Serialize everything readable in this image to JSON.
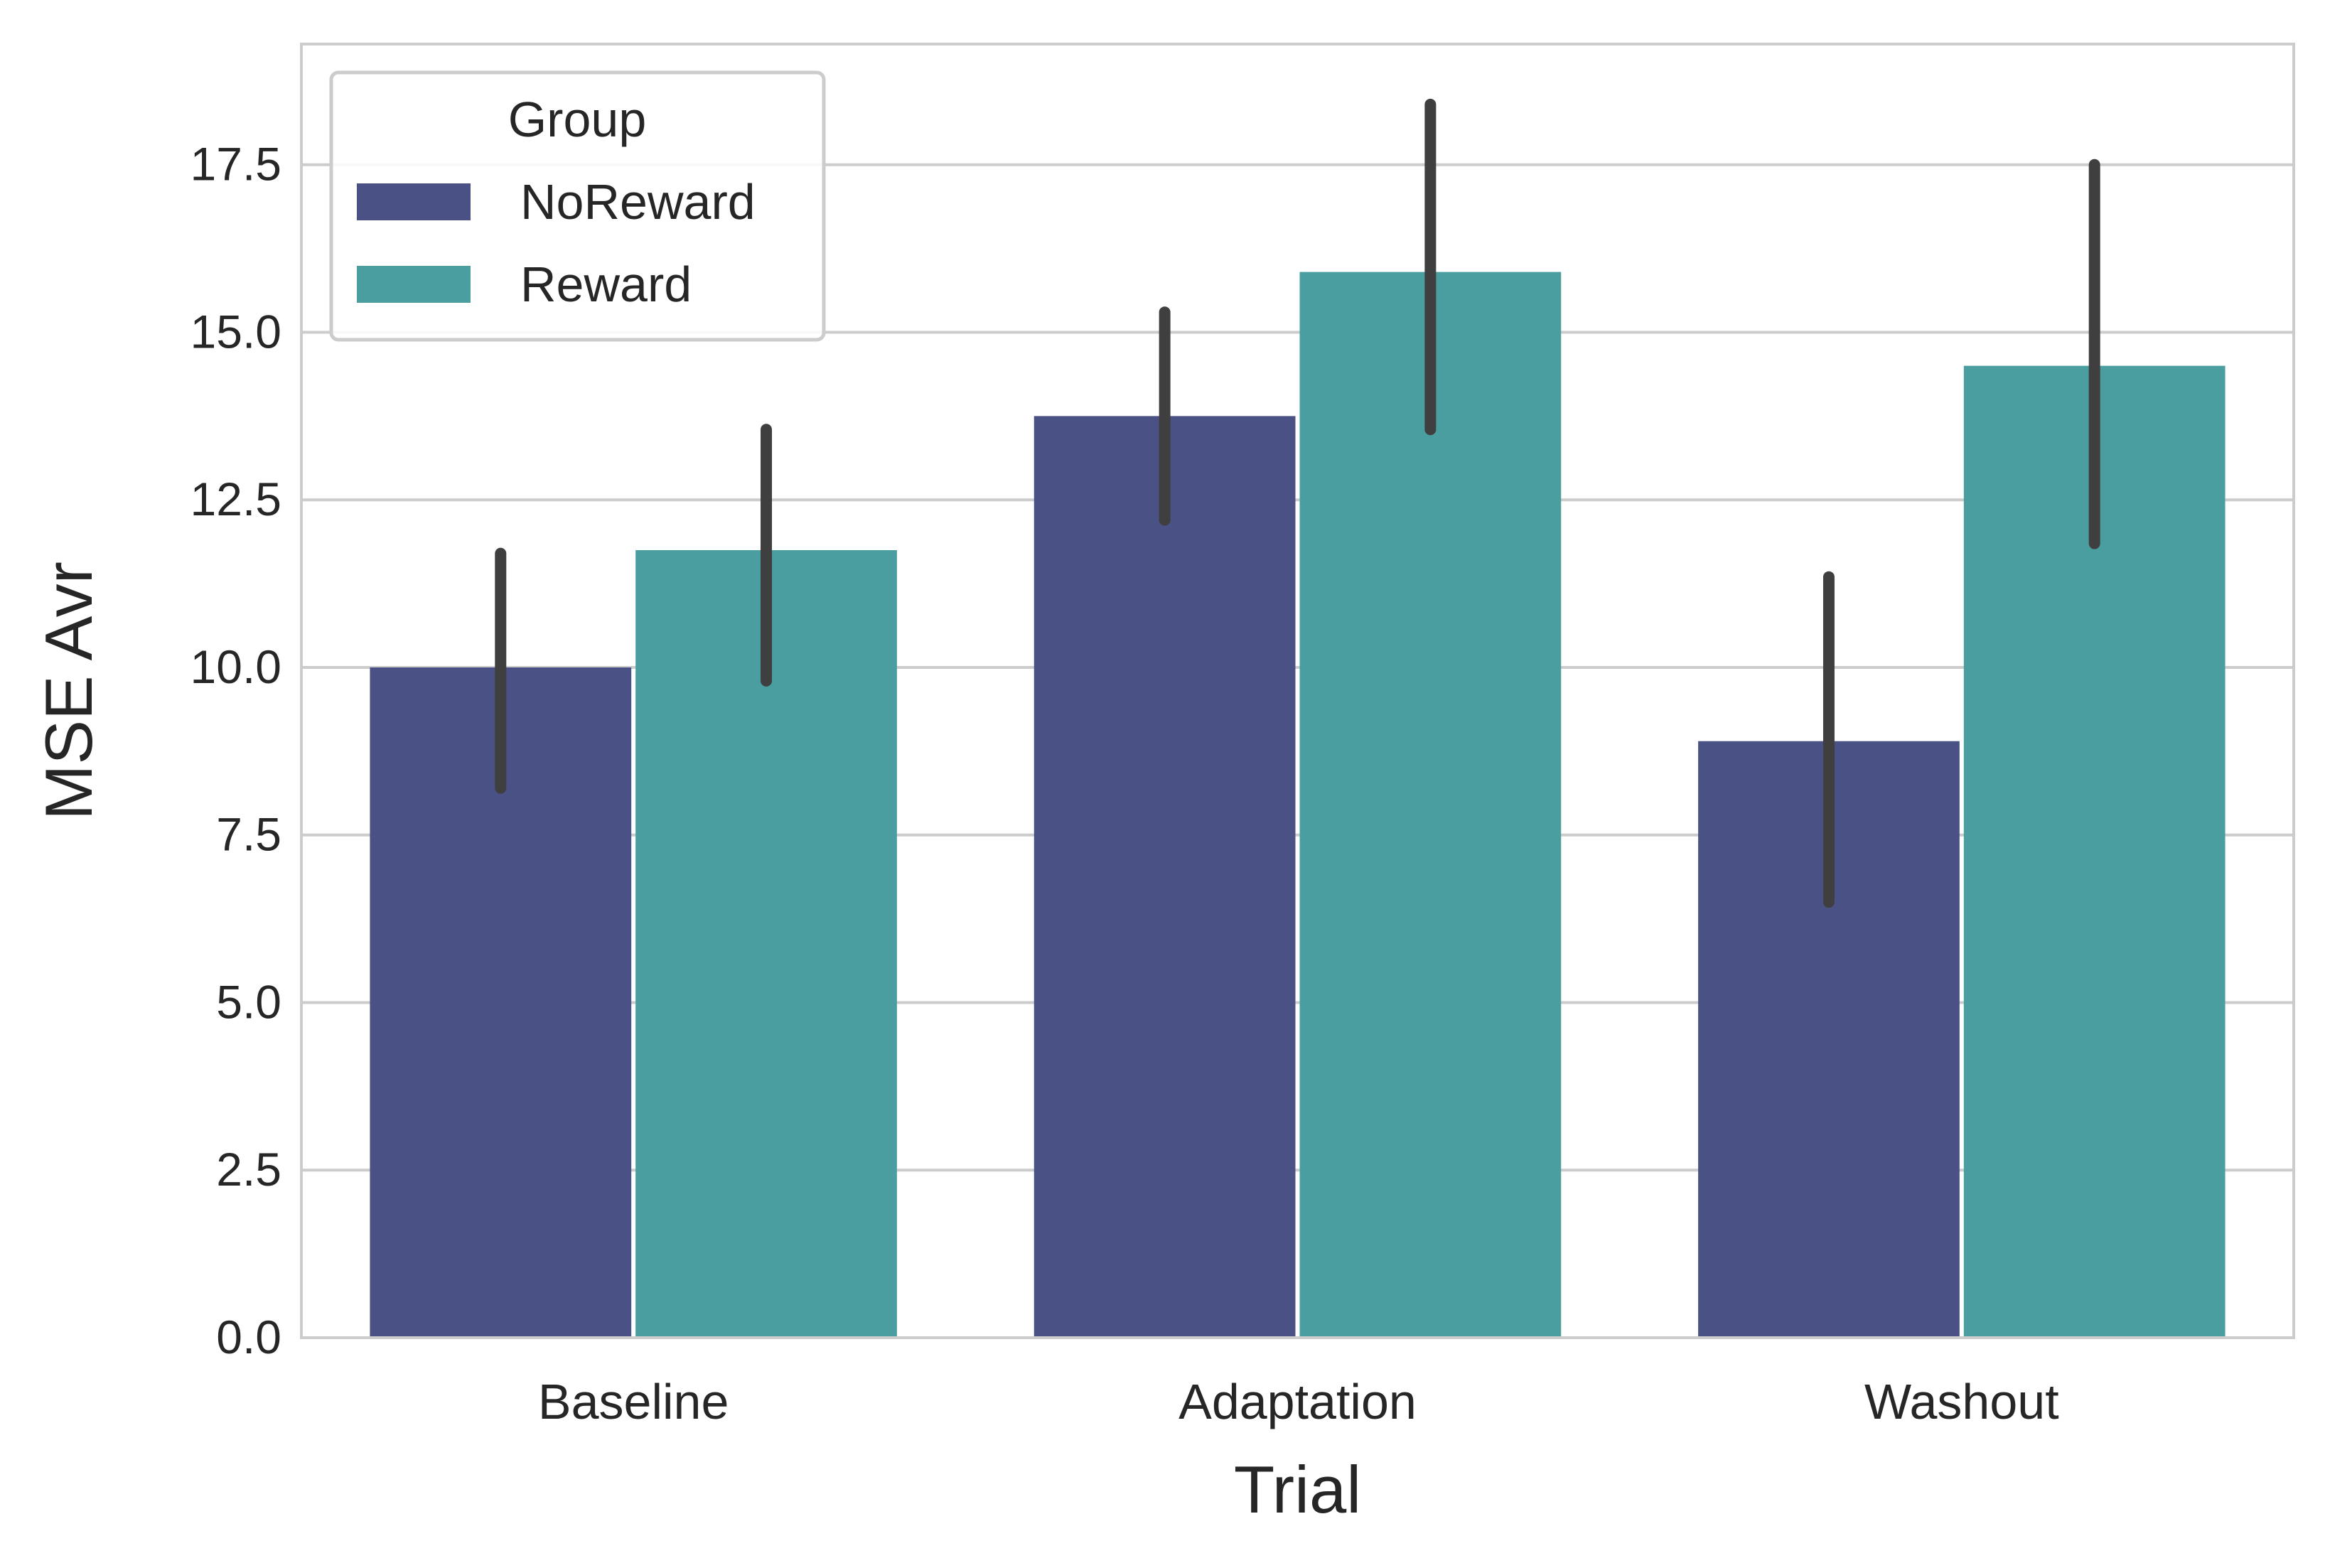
{
  "chart_data": {
    "type": "bar",
    "title": "",
    "xlabel": "Trial",
    "ylabel": "MSE Avr",
    "categories": [
      "Baseline",
      "Adaptation",
      "Washout"
    ],
    "series": [
      {
        "name": "NoReward",
        "color": "#4a5185",
        "values": [
          10.0,
          13.75,
          8.9
        ],
        "error_low": [
          8.2,
          12.2,
          6.5
        ],
        "error_high": [
          11.7,
          15.3,
          11.35
        ]
      },
      {
        "name": "Reward",
        "color": "#4a9e9f",
        "values": [
          11.75,
          15.9,
          14.5
        ],
        "error_low": [
          9.8,
          13.55,
          11.85
        ],
        "error_high": [
          13.55,
          18.4,
          17.5
        ]
      }
    ],
    "ylim": [
      0,
      19.3
    ],
    "yticks": [
      "0.0",
      "2.5",
      "5.0",
      "7.5",
      "10.0",
      "12.5",
      "15.0",
      "17.5"
    ],
    "grid": true,
    "legend": {
      "title": "Group",
      "placement": "top-left"
    },
    "colors": {
      "grid": "#cccccc",
      "frame": "#cccccc",
      "errorbar": "#3f3f3f",
      "text": "#262626"
    }
  }
}
